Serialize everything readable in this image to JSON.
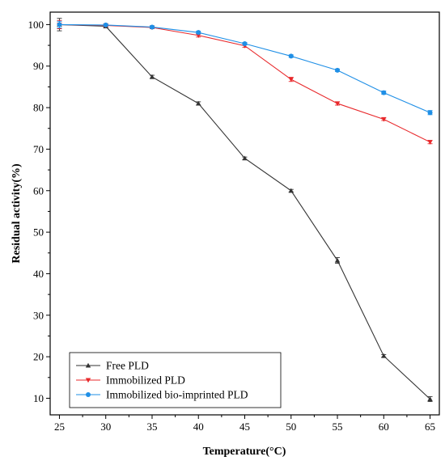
{
  "chart_data": {
    "type": "line",
    "xlabel": "Temperature(°C)",
    "ylabel": "Residual activity(%)",
    "x": [
      25,
      30,
      35,
      40,
      45,
      50,
      55,
      60,
      65
    ],
    "xlim": [
      24,
      66
    ],
    "ylim": [
      6,
      103
    ],
    "xticks": [
      "25",
      "30",
      "35",
      "40",
      "45",
      "50",
      "55",
      "60",
      "65"
    ],
    "yticks": [
      "10",
      "20",
      "30",
      "40",
      "50",
      "60",
      "70",
      "80",
      "90",
      "100"
    ],
    "legend_position": "bottom-left",
    "grid": false,
    "series": [
      {
        "name": "Free PLD",
        "color": "#333333",
        "marker": "triangle-up",
        "values": [
          100,
          99.6,
          87.4,
          81.0,
          67.8,
          60.0,
          43.2,
          20.2,
          9.8
        ],
        "errors": [
          1.5,
          0.3,
          0.4,
          0.4,
          0.3,
          0.3,
          0.7,
          0.3,
          0.6
        ]
      },
      {
        "name": "Immobilized PLD",
        "color": "#e8282b",
        "marker": "triangle-down",
        "values": [
          100,
          99.8,
          99.3,
          97.4,
          94.9,
          86.8,
          81.0,
          77.2,
          71.7
        ],
        "errors": [
          1.0,
          0.3,
          0.3,
          0.4,
          0.4,
          0.5,
          0.4,
          0.3,
          0.4
        ]
      },
      {
        "name": "Immobilized bio-imprinted PLD",
        "color": "#1f8fe6",
        "marker": "circle",
        "values": [
          100,
          99.9,
          99.4,
          98.1,
          95.4,
          92.4,
          89.0,
          83.6,
          78.8
        ],
        "errors": [
          0.8,
          0.2,
          0.3,
          0.3,
          0.3,
          0.3,
          0.3,
          0.4,
          0.5
        ]
      }
    ]
  }
}
